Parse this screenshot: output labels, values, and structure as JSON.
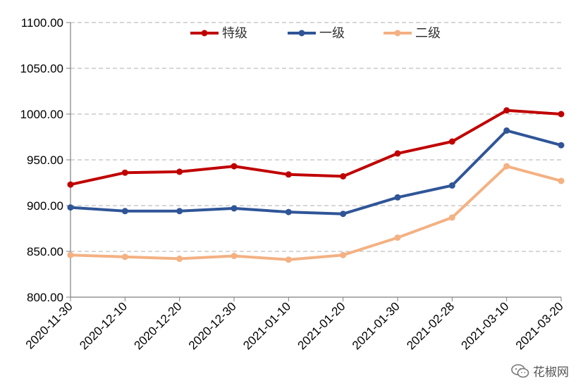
{
  "chart_data": {
    "type": "line",
    "categories": [
      "2020-11-30",
      "2020-12-10",
      "2020-12-20",
      "2020-12-30",
      "2021-01-10",
      "2021-01-20",
      "2021-01-30",
      "2021-02-28",
      "2021-03-10",
      "2021-03-20"
    ],
    "series": [
      {
        "name": "特级",
        "color": "#C00000",
        "values": [
          923,
          936,
          937,
          943,
          934,
          932,
          957,
          970,
          1004,
          1000
        ]
      },
      {
        "name": "一级",
        "color": "#2F5597",
        "values": [
          898,
          894,
          894,
          897,
          893,
          891,
          909,
          922,
          982,
          966
        ]
      },
      {
        "name": "二级",
        "color": "#F4B183",
        "values": [
          846,
          844,
          842,
          845,
          841,
          846,
          865,
          887,
          943,
          927
        ]
      }
    ],
    "ylim": [
      800,
      1100
    ],
    "yticks": [
      "800.00",
      "850.00",
      "900.00",
      "950.00",
      "1000.00",
      "1050.00",
      "1100.00"
    ],
    "grid": true,
    "legend": "top-center"
  },
  "watermark": {
    "text": "花椒网",
    "icon": "wechat-icon"
  }
}
